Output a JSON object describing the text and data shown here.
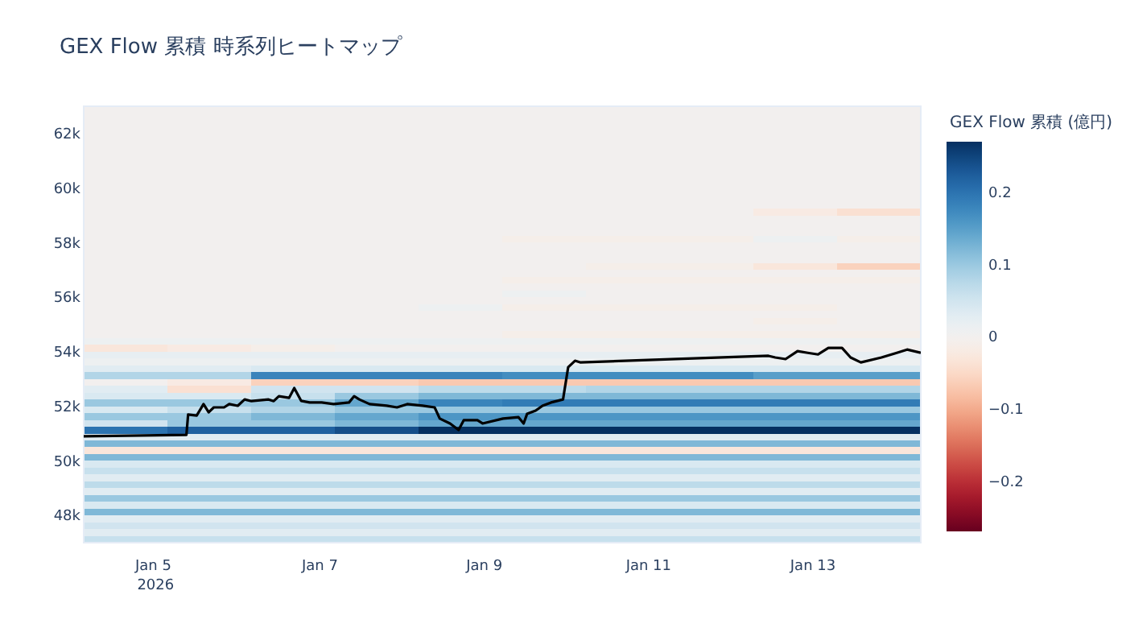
{
  "chart_data": [
    {
      "type": "heatmap",
      "clabel": "GEX Flow 累積 (億円)",
      "categories": [
        null,
        null,
        null,
        null,
        null,
        null,
        null,
        null,
        null,
        null
      ],
      "y_categories": [
        null,
        null,
        null,
        null,
        null,
        null,
        null,
        null,
        null,
        null,
        null,
        null,
        null,
        null,
        null,
        null,
        null,
        null,
        null,
        null,
        null,
        null,
        null,
        null,
        null,
        null,
        null,
        null,
        null,
        null,
        null,
        null,
        null,
        null,
        null,
        null,
        null,
        null,
        null,
        null,
        null,
        null,
        null,
        null,
        null,
        null,
        null,
        null,
        null,
        null,
        null,
        null,
        null,
        null,
        null,
        null,
        null,
        null,
        null,
        null,
        null,
        null,
        null,
        null
      ],
      "cells": [
        [
          0,
          0,
          0,
          0,
          0,
          0,
          0,
          0,
          0,
          0
        ],
        [
          0,
          0,
          0,
          0,
          0,
          0,
          0,
          0,
          0,
          0
        ],
        [
          0,
          0,
          0,
          0,
          0,
          0,
          0,
          0,
          0,
          0
        ],
        [
          0,
          0,
          0,
          0,
          0,
          0,
          0,
          0,
          0,
          0
        ],
        [
          0,
          0,
          0,
          0,
          0,
          0,
          0,
          0,
          0,
          0
        ],
        [
          0,
          0,
          0,
          0,
          0,
          0,
          0,
          0,
          0,
          0
        ],
        [
          0,
          0,
          0,
          0,
          0,
          0,
          0,
          0,
          0,
          0
        ],
        [
          0,
          0,
          0,
          0,
          0,
          0,
          0,
          0,
          0,
          0
        ],
        [
          0,
          0,
          0,
          0,
          0,
          0,
          0,
          0,
          0,
          0
        ],
        [
          0,
          0,
          0,
          0,
          0,
          0,
          0,
          0,
          0,
          0
        ],
        [
          0,
          0,
          0,
          0,
          0,
          0,
          0,
          0,
          0,
          0
        ],
        [
          0,
          0,
          0,
          0,
          0,
          0,
          0,
          0,
          0,
          0
        ],
        [
          0,
          0,
          0,
          0,
          0,
          0,
          0,
          0,
          0,
          0
        ],
        [
          0,
          0,
          0,
          0,
          0,
          0,
          0,
          0,
          0,
          0
        ],
        [
          0,
          0,
          0,
          0,
          0,
          0,
          0,
          0,
          0,
          0
        ],
        [
          0,
          0,
          0,
          0,
          0,
          0,
          0,
          0,
          -0.02,
          -0.04
        ],
        [
          0,
          0,
          0,
          0,
          0,
          0,
          0,
          0,
          0,
          0
        ],
        [
          0,
          0,
          0,
          0,
          0,
          0,
          0,
          0,
          0,
          0
        ],
        [
          0,
          0,
          0,
          0,
          0,
          0,
          0,
          0,
          0,
          0
        ],
        [
          0,
          0,
          0,
          0,
          0,
          -0.01,
          -0.01,
          -0.01,
          0.01,
          -0.01
        ],
        [
          0,
          0,
          0,
          0,
          0,
          0,
          0,
          0,
          0,
          0
        ],
        [
          0,
          0,
          0,
          0,
          0,
          0,
          0,
          0,
          0,
          0
        ],
        [
          0,
          0,
          0,
          0,
          0,
          0,
          0,
          0,
          0,
          0
        ],
        [
          0,
          0,
          0,
          0,
          0,
          0,
          -0.01,
          -0.01,
          -0.03,
          -0.06
        ],
        [
          0,
          0,
          0,
          0,
          0,
          0,
          0,
          0,
          0,
          0
        ],
        [
          0,
          0,
          0,
          0,
          0,
          -0.01,
          -0.01,
          -0.01,
          -0.01,
          -0.01
        ],
        [
          0,
          0,
          0,
          0,
          0,
          0,
          0,
          0,
          0,
          0
        ],
        [
          0,
          0,
          0,
          0,
          0,
          0.01,
          0,
          0,
          0,
          0
        ],
        [
          0,
          0,
          0,
          0,
          0,
          0,
          0,
          0,
          0,
          0
        ],
        [
          0,
          0,
          0,
          0,
          0.01,
          -0.01,
          -0.01,
          -0.01,
          -0.01,
          0
        ],
        [
          0,
          0,
          0,
          0,
          0,
          0,
          0,
          0,
          0,
          0
        ],
        [
          0,
          0,
          0,
          0,
          0,
          0,
          0,
          0,
          -0.01,
          0
        ],
        [
          0,
          0,
          0,
          0,
          0,
          0,
          0,
          0,
          0,
          0
        ],
        [
          0,
          0,
          0,
          0,
          0,
          -0.01,
          -0.01,
          -0.01,
          -0.01,
          -0.01
        ],
        [
          0.01,
          0.01,
          0.01,
          0.01,
          0.01,
          0.01,
          0.01,
          0.01,
          0.01,
          0.01
        ],
        [
          -0.03,
          -0.02,
          -0.01,
          0,
          0,
          0,
          0,
          0,
          0,
          0
        ],
        [
          0.02,
          0.02,
          0.02,
          0.02,
          0.02,
          0.02,
          0.02,
          0.02,
          0.02,
          0.02
        ],
        [
          0.01,
          0.01,
          0.01,
          0.01,
          0.01,
          0.01,
          0.01,
          0.01,
          0.01,
          0.01
        ],
        [
          0.03,
          0.03,
          0.04,
          0.04,
          0.04,
          0.04,
          0.04,
          0.04,
          0.04,
          0.04
        ],
        [
          0.08,
          0.08,
          0.18,
          0.18,
          0.18,
          0.17,
          0.17,
          0.17,
          0.15,
          0.15
        ],
        [
          0,
          -0.02,
          -0.06,
          -0.06,
          -0.07,
          -0.07,
          -0.07,
          -0.07,
          -0.07,
          -0.07
        ],
        [
          0.03,
          -0.04,
          0.05,
          0.05,
          0.07,
          0.07,
          0.08,
          0.08,
          0.08,
          0.08
        ],
        [
          0.04,
          0.04,
          0.06,
          0.1,
          0.12,
          0.12,
          0.12,
          0.12,
          0.12,
          0.12
        ],
        [
          0.1,
          0.1,
          0.1,
          0.14,
          0.18,
          0.19,
          0.19,
          0.19,
          0.19,
          0.19
        ],
        [
          0.04,
          0.06,
          0.08,
          0.1,
          0.1,
          0.1,
          0.1,
          0.1,
          0.1,
          0.1
        ],
        [
          0.1,
          0.1,
          0.12,
          0.14,
          0.16,
          0.16,
          0.16,
          0.16,
          0.16,
          0.16
        ],
        [
          0.05,
          0.1,
          0.1,
          0.12,
          0.14,
          0.14,
          0.14,
          0.14,
          0.14,
          0.14
        ],
        [
          0.2,
          0.22,
          0.22,
          0.24,
          0.27,
          0.27,
          0.27,
          0.27,
          0.27,
          0.27
        ],
        [
          0.03,
          0.03,
          0.03,
          0.03,
          0.03,
          0.03,
          0.03,
          0.03,
          0.03,
          0.03
        ],
        [
          0.12,
          0.12,
          0.12,
          0.12,
          0.12,
          0.12,
          0.12,
          0.12,
          0.12,
          0.12
        ],
        [
          -0.03,
          -0.03,
          -0.03,
          -0.03,
          -0.03,
          -0.03,
          -0.03,
          -0.03,
          -0.03,
          -0.03
        ],
        [
          0.12,
          0.12,
          0.12,
          0.12,
          0.12,
          0.12,
          0.12,
          0.12,
          0.12,
          0.12
        ],
        [
          0.04,
          0.04,
          0.04,
          0.04,
          0.04,
          0.04,
          0.04,
          0.04,
          0.04,
          0.04
        ],
        [
          0.06,
          0.06,
          0.06,
          0.06,
          0.06,
          0.06,
          0.06,
          0.06,
          0.06,
          0.06
        ],
        [
          0.03,
          0.03,
          0.03,
          0.03,
          0.03,
          0.03,
          0.03,
          0.03,
          0.03,
          0.03
        ],
        [
          0.07,
          0.07,
          0.07,
          0.07,
          0.07,
          0.07,
          0.07,
          0.07,
          0.07,
          0.07
        ],
        [
          0.03,
          0.03,
          0.03,
          0.03,
          0.03,
          0.03,
          0.03,
          0.03,
          0.03,
          0.03
        ],
        [
          0.1,
          0.1,
          0.1,
          0.1,
          0.1,
          0.1,
          0.1,
          0.1,
          0.1,
          0.1
        ],
        [
          0.04,
          0.04,
          0.04,
          0.04,
          0.04,
          0.04,
          0.04,
          0.04,
          0.04,
          0.04
        ],
        [
          0.12,
          0.12,
          0.12,
          0.12,
          0.12,
          0.12,
          0.12,
          0.12,
          0.12,
          0.12
        ],
        [
          0.03,
          0.03,
          0.03,
          0.03,
          0.03,
          0.03,
          0.03,
          0.03,
          0.03,
          0.03
        ],
        [
          0.05,
          0.05,
          0.05,
          0.05,
          0.05,
          0.05,
          0.05,
          0.05,
          0.05,
          0.05
        ],
        [
          0.03,
          0.03,
          0.03,
          0.03,
          0.03,
          0.03,
          0.03,
          0.03,
          0.03,
          0.03
        ],
        [
          0.06,
          0.06,
          0.06,
          0.06,
          0.06,
          0.06,
          0.06,
          0.06,
          0.06,
          0.06
        ]
      ],
      "clim": [
        -0.27,
        0.27
      ],
      "cticks": [
        {
          "value": -0.2,
          "label": "−0.2"
        },
        {
          "value": -0.1,
          "label": "−0.1"
        },
        0,
        0.1,
        0.2
      ]
    },
    {
      "type": "line",
      "title": "GEX Flow 累積 時系列ヒートマップ",
      "xlim": [
        "2026-01-04T03:00",
        "2026-01-14T07:30"
      ],
      "xticks": [
        {
          "value": "2026-01-05",
          "label": "Jan 5\n2026"
        },
        {
          "value": "2026-01-07",
          "label": "Jan 7"
        },
        {
          "value": "2026-01-09",
          "label": "Jan 9"
        },
        {
          "value": "2026-01-11",
          "label": "Jan 11"
        },
        {
          "value": "2026-01-13",
          "label": "Jan 13"
        }
      ],
      "ylim": [
        47000,
        63000
      ],
      "yticks": [
        {
          "value": 48000,
          "label": "48k"
        },
        {
          "value": 50000,
          "label": "50k"
        },
        {
          "value": 52000,
          "label": "52k"
        },
        {
          "value": 54000,
          "label": "54k"
        },
        {
          "value": 56000,
          "label": "56k"
        },
        {
          "value": 58000,
          "label": "58k"
        },
        {
          "value": 60000,
          "label": "60k"
        },
        {
          "value": 62000,
          "label": "62k"
        }
      ],
      "series": [
        {
          "type": "line",
          "color": "#000000",
          "x": [
            "2026-01-04T03:00",
            "2026-01-05T09:00",
            "2026-01-05T09:30",
            "2026-01-05T12:00",
            "2026-01-05T14:00",
            "2026-01-05T15:30",
            "2026-01-05T17:00",
            "2026-01-05T20:00",
            "2026-01-05T21:30",
            "2026-01-06T00:00",
            "2026-01-06T02:00",
            "2026-01-06T04:00",
            "2026-01-06T09:00",
            "2026-01-06T10:30",
            "2026-01-06T12:00",
            "2026-01-06T15:00",
            "2026-01-06T16:30",
            "2026-01-06T18:30",
            "2026-01-06T21:00",
            "2026-01-07T00:30",
            "2026-01-07T04:00",
            "2026-01-07T08:30",
            "2026-01-07T10:00",
            "2026-01-07T11:30",
            "2026-01-07T14:30",
            "2026-01-07T19:30",
            "2026-01-07T22:30",
            "2026-01-08T01:30",
            "2026-01-08T06:00",
            "2026-01-08T09:30",
            "2026-01-08T11:00",
            "2026-01-08T14:00",
            "2026-01-08T16:30",
            "2026-01-08T18:00",
            "2026-01-08T22:00",
            "2026-01-08T23:30",
            "2026-01-09T05:30",
            "2026-01-09T10:00",
            "2026-01-09T11:30",
            "2026-01-09T12:30",
            "2026-01-09T15:00",
            "2026-01-09T17:00",
            "2026-01-09T19:30",
            "2026-01-09T23:00",
            "2026-01-10T00:30",
            "2026-01-10T02:30",
            "2026-01-10T04:00",
            "2026-01-12T11:00",
            "2026-01-12T13:00",
            "2026-01-12T16:00",
            "2026-01-12T19:30",
            "2026-01-12T22:30",
            "2026-01-13T01:30",
            "2026-01-13T04:30",
            "2026-01-13T08:30",
            "2026-01-13T11:00",
            "2026-01-13T14:00",
            "2026-01-13T20:00",
            "2026-01-14T00:30",
            "2026-01-14T03:30",
            "2026-01-14T07:30"
          ],
          "values": [
            50900,
            50950,
            51700,
            51660,
            52080,
            51780,
            51960,
            51960,
            52080,
            52020,
            52250,
            52190,
            52250,
            52190,
            52370,
            52310,
            52670,
            52200,
            52140,
            52140,
            52080,
            52140,
            52370,
            52250,
            52080,
            52020,
            51960,
            52080,
            52020,
            51960,
            51550,
            51370,
            51130,
            51490,
            51490,
            51370,
            51550,
            51600,
            51370,
            51720,
            51840,
            52020,
            52140,
            52250,
            53430,
            53670,
            53610,
            53850,
            53790,
            53730,
            54020,
            53960,
            53900,
            54140,
            54140,
            53790,
            53610,
            53790,
            53960,
            54080,
            53960
          ]
        }
      ]
    }
  ]
}
